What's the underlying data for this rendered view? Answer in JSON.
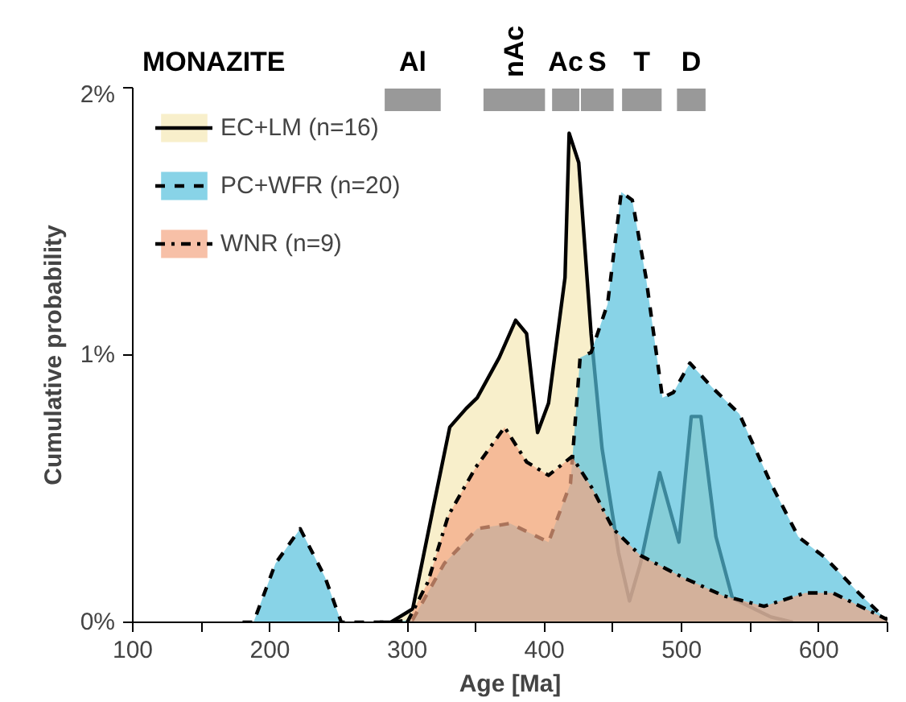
{
  "chart_data": {
    "type": "area",
    "title": "MONAZITE",
    "xlabel": "Age [Ma]",
    "ylabel": "Cumulative probability",
    "xlim": [
      100,
      650
    ],
    "ylim": [
      0,
      2
    ],
    "xticks": [
      100,
      {
        "value": 150,
        "label": null
      },
      200,
      {
        "value": 250,
        "label": null
      },
      300,
      {
        "value": 350,
        "label": null
      },
      400,
      {
        "value": 450,
        "label": null
      },
      500,
      {
        "value": 550,
        "label": null
      },
      600,
      {
        "value": 650,
        "label": null
      }
    ],
    "yticks": [
      {
        "value": 0,
        "label": "0%"
      },
      {
        "value": 1,
        "label": "1%"
      },
      {
        "value": 2,
        "label": "2%"
      }
    ],
    "grid": false,
    "legend": "top left",
    "series": [
      {
        "name": "EC+LM (n=16)",
        "color": "#f5e8b5",
        "line_style": "solid",
        "x": [
          280,
          288,
          304,
          319,
          331,
          343,
          351,
          367,
          379,
          387,
          395,
          403,
          415,
          418,
          425,
          434,
          442,
          454,
          462,
          470,
          484,
          498,
          507,
          514,
          525,
          537,
          565,
          581
        ],
        "values": [
          0,
          0,
          0.05,
          0.43,
          0.73,
          0.8,
          0.84,
          0.99,
          1.13,
          1.08,
          0.71,
          0.82,
          1.29,
          1.83,
          1.72,
          1.08,
          0.65,
          0.26,
          0.08,
          0.22,
          0.56,
          0.3,
          0.77,
          0.77,
          0.32,
          0.09,
          0.02,
          0
        ]
      },
      {
        "name": "PC+WFR (n=20)",
        "color": "#56c1dd",
        "line_style": "dashed",
        "x": [
          180,
          188,
          204,
          222,
          240,
          252,
          260,
          288,
          304,
          327,
          351,
          375,
          403,
          419,
          426,
          434,
          446,
          456,
          464,
          474,
          486,
          494,
          506,
          522,
          542,
          565,
          585,
          605,
          629,
          645,
          650
        ],
        "values": [
          0,
          0,
          0.22,
          0.35,
          0.17,
          0,
          0,
          0,
          0.01,
          0.22,
          0.35,
          0.37,
          0.3,
          0.52,
          0.99,
          1.01,
          1.19,
          1.61,
          1.58,
          1.29,
          0.84,
          0.86,
          0.97,
          0.88,
          0.78,
          0.52,
          0.32,
          0.24,
          0.11,
          0.03,
          0.01
        ]
      },
      {
        "name": "WNR (n=9)",
        "color": "#f4a582",
        "line_style": "dashdot",
        "x": [
          300,
          315,
          330,
          350,
          371,
          387,
          403,
          420,
          435,
          450,
          470,
          500,
          530,
          560,
          590,
          610,
          630,
          650
        ],
        "values": [
          0,
          0.15,
          0.4,
          0.58,
          0.73,
          0.6,
          0.55,
          0.62,
          0.5,
          0.35,
          0.25,
          0.17,
          0.1,
          0.06,
          0.11,
          0.11,
          0.06,
          0.01
        ]
      }
    ],
    "bands": [
      {
        "axis": "x",
        "from": 283,
        "to": 325,
        "label": "Al",
        "color": "#999999"
      },
      {
        "axis": "x",
        "from": 355,
        "to": 401,
        "label": "nAc",
        "color": "#999999"
      },
      {
        "axis": "x",
        "from": 405,
        "to": 426,
        "label": "Ac",
        "color": "#999999"
      },
      {
        "axis": "x",
        "from": 426,
        "to": 451,
        "label": "S",
        "color": "#999999"
      },
      {
        "axis": "x",
        "from": 456,
        "to": 486,
        "label": "T",
        "color": "#999999"
      },
      {
        "axis": "x",
        "from": 496,
        "to": 518,
        "label": "D",
        "color": "#999999"
      }
    ]
  }
}
